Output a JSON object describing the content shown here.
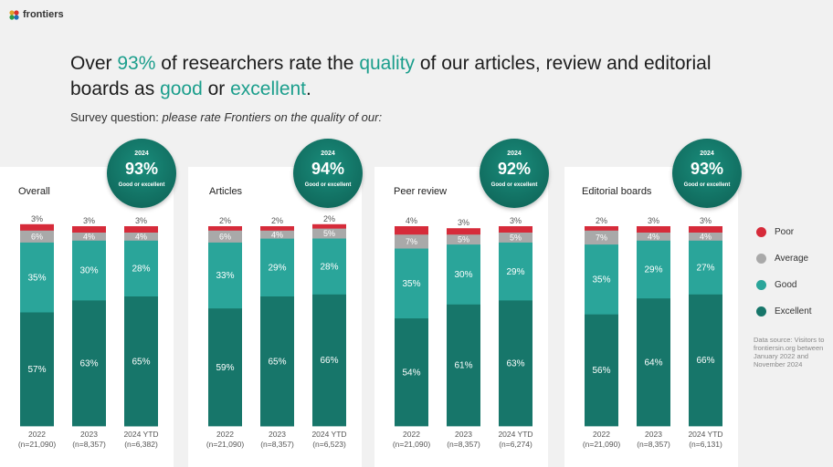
{
  "brand": {
    "name": "frontiers"
  },
  "headline": {
    "p1": "Over ",
    "h1": "93%",
    "p2": " of researchers rate the ",
    "h2": "quality",
    "p3": " of our articles, review and editorial boards as ",
    "h3": "good",
    "p4": " or ",
    "h5": "excellent",
    "p5": "."
  },
  "subtitle": {
    "lead": "Survey question: ",
    "question": "please rate Frontiers on the quality of our:"
  },
  "colors": {
    "poor": "#d62b3a",
    "average": "#a9a9a9",
    "good": "#2aa59a",
    "excellent": "#17766a",
    "accent": "#1b9e8c"
  },
  "legend": [
    {
      "key": "poor",
      "label": "Poor"
    },
    {
      "key": "average",
      "label": "Average"
    },
    {
      "key": "good",
      "label": "Good"
    },
    {
      "key": "excellent",
      "label": "Excellent"
    }
  ],
  "source_note": "Data source: Visitors to frontiersin.org between January 2022 and November 2024",
  "chart_data": [
    {
      "type": "bar",
      "stacked": true,
      "title": "Overall",
      "categories": [
        "2022",
        "2023",
        "2024 YTD"
      ],
      "sample_sizes": [
        "(n=21,090)",
        "(n=8,357)",
        "(n=6,382)"
      ],
      "series": [
        {
          "name": "Excellent",
          "values": [
            57,
            63,
            65
          ]
        },
        {
          "name": "Good",
          "values": [
            35,
            30,
            28
          ]
        },
        {
          "name": "Average",
          "values": [
            6,
            4,
            4
          ]
        },
        {
          "name": "Poor",
          "values": [
            3,
            3,
            3
          ]
        }
      ],
      "badge": {
        "year": "2024",
        "value": "93%",
        "label": "Good or excellent"
      }
    },
    {
      "type": "bar",
      "stacked": true,
      "title": "Articles",
      "categories": [
        "2022",
        "2023",
        "2024 YTD"
      ],
      "sample_sizes": [
        "(n=21,090)",
        "(n=8,357)",
        "(n=6,523)"
      ],
      "series": [
        {
          "name": "Excellent",
          "values": [
            59,
            65,
            66
          ]
        },
        {
          "name": "Good",
          "values": [
            33,
            29,
            28
          ]
        },
        {
          "name": "Average",
          "values": [
            6,
            4,
            5
          ]
        },
        {
          "name": "Poor",
          "values": [
            2,
            2,
            2
          ]
        }
      ],
      "badge": {
        "year": "2024",
        "value": "94%",
        "label": "Good or excellent"
      }
    },
    {
      "type": "bar",
      "stacked": true,
      "title": "Peer review",
      "categories": [
        "2022",
        "2023",
        "2024 YTD"
      ],
      "sample_sizes": [
        "(n=21,090)",
        "(n=8,357)",
        "(n=6,274)"
      ],
      "series": [
        {
          "name": "Excellent",
          "values": [
            54,
            61,
            63
          ]
        },
        {
          "name": "Good",
          "values": [
            35,
            30,
            29
          ]
        },
        {
          "name": "Average",
          "values": [
            7,
            5,
            5
          ]
        },
        {
          "name": "Poor",
          "values": [
            4,
            3,
            3
          ]
        }
      ],
      "badge": {
        "year": "2024",
        "value": "92%",
        "label": "Good or excellent"
      }
    },
    {
      "type": "bar",
      "stacked": true,
      "title": "Editorial boards",
      "categories": [
        "2022",
        "2023",
        "2024 YTD"
      ],
      "sample_sizes": [
        "(n=21,090)",
        "(n=8,357)",
        "(n=6,131)"
      ],
      "series": [
        {
          "name": "Excellent",
          "values": [
            56,
            64,
            66
          ]
        },
        {
          "name": "Good",
          "values": [
            35,
            29,
            27
          ]
        },
        {
          "name": "Average",
          "values": [
            7,
            4,
            4
          ]
        },
        {
          "name": "Poor",
          "values": [
            2,
            3,
            3
          ]
        }
      ],
      "badge": {
        "year": "2024",
        "value": "93%",
        "label": "Good or excellent"
      }
    }
  ]
}
